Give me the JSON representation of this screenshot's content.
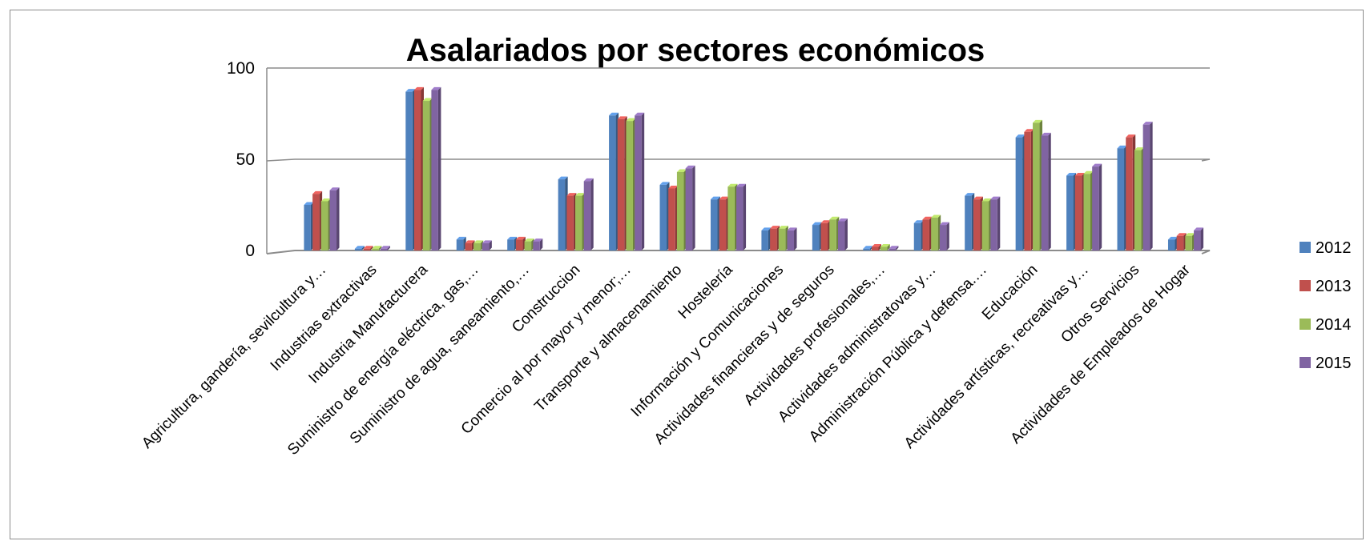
{
  "chart_data": {
    "type": "bar",
    "title": "Asalariados por sectores económicos",
    "xlabel": "",
    "ylabel": "",
    "ylim": [
      0,
      100
    ],
    "yticks": [
      0,
      50,
      100
    ],
    "ytick_labels": [
      "0",
      "50",
      "100"
    ],
    "grid": true,
    "legend_position": "right",
    "categories": [
      "Agricultura, gandería, sevilcultura y…",
      "Industrias extractivas",
      "Industria Manufacturera",
      "Suministro de energía eléctrica, gas,…",
      "Suministro de agua, saneamiento,…",
      "Construccion",
      "Comercio al por mayor y menor;…",
      "Transporte y almacenamiento",
      "Hostelería",
      "Información y Comunicaciones",
      "Actividades financieras y de seguros",
      "Actividades profesionales,…",
      "Actividades administratovas y…",
      "Administración Pública y defensa.…",
      "Educación",
      "Actividades artísticas, recreativas y…",
      "Otros Servicios",
      "Actividades de Empleados de Hogar"
    ],
    "series": [
      {
        "name": "2012",
        "color": "#4f81bd",
        "values": [
          25,
          1,
          87,
          6,
          6,
          39,
          74,
          36,
          28,
          11,
          14,
          1,
          15,
          30,
          62,
          41,
          56,
          6
        ]
      },
      {
        "name": "2013",
        "color": "#c0504d",
        "values": [
          31,
          1,
          88,
          4,
          6,
          30,
          72,
          34,
          28,
          12,
          15,
          2,
          17,
          28,
          65,
          41,
          62,
          8
        ]
      },
      {
        "name": "2014",
        "color": "#9bbb59",
        "values": [
          27,
          1,
          82,
          4,
          5,
          30,
          71,
          43,
          35,
          12,
          17,
          2,
          18,
          27,
          70,
          42,
          55,
          8
        ]
      },
      {
        "name": "2015",
        "color": "#8064a2",
        "values": [
          33,
          1,
          88,
          4,
          5,
          38,
          74,
          45,
          35,
          11,
          16,
          1,
          14,
          28,
          63,
          46,
          69,
          11
        ]
      }
    ]
  }
}
